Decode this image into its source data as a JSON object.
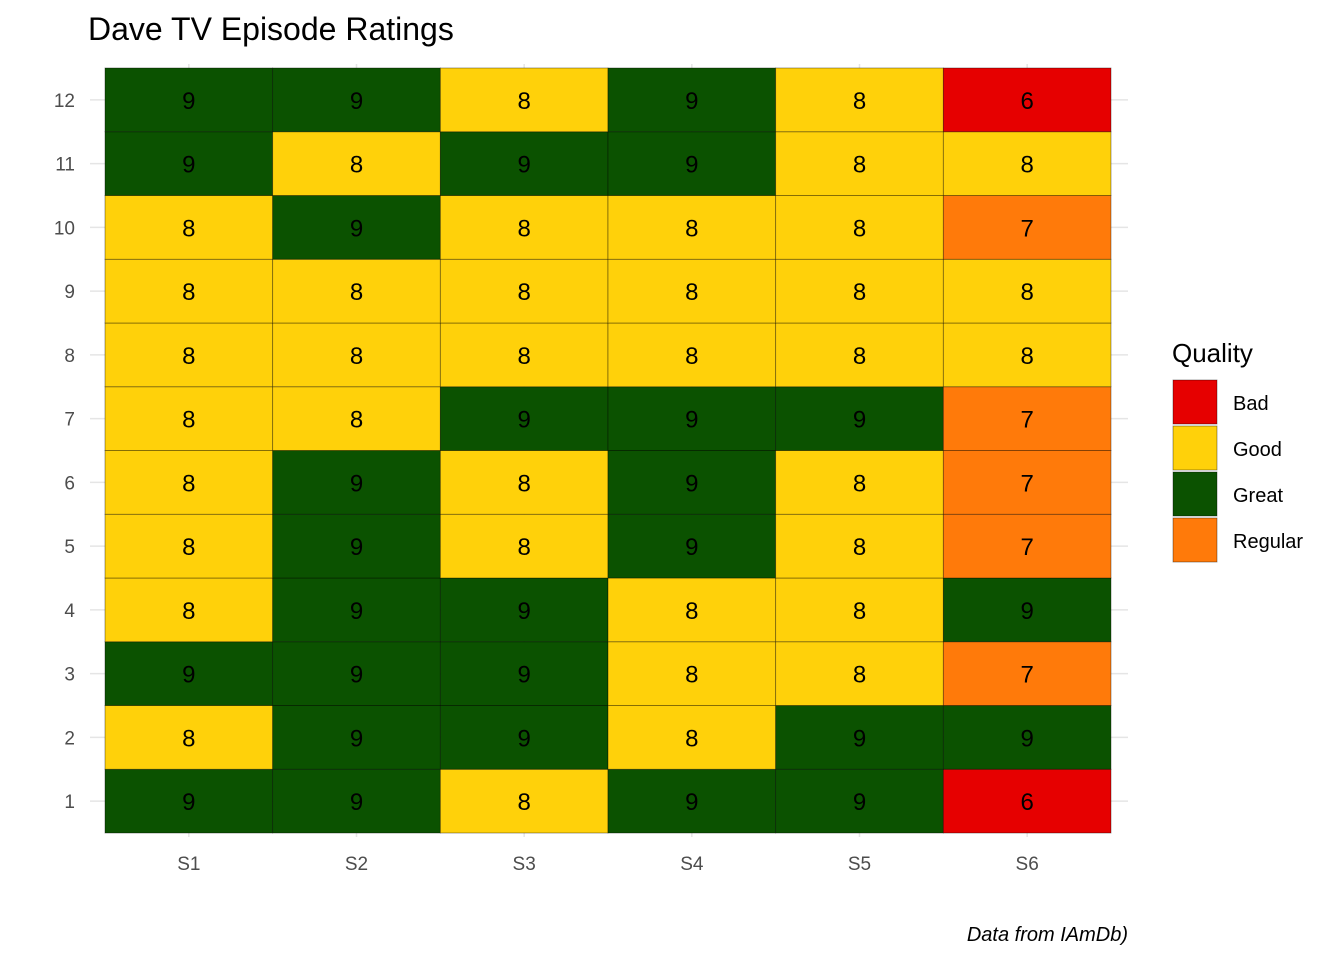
{
  "chart_data": {
    "type": "heatmap",
    "title": "Dave TV Episode Ratings",
    "caption": "Data from IAmDb)",
    "xlabel": "",
    "ylabel": "",
    "x_categories": [
      "S1",
      "S2",
      "S3",
      "S4",
      "S5",
      "S6"
    ],
    "y_categories": [
      "1",
      "2",
      "3",
      "4",
      "5",
      "6",
      "7",
      "8",
      "9",
      "10",
      "11",
      "12"
    ],
    "values": [
      [
        9,
        9,
        8,
        9,
        9,
        6
      ],
      [
        8,
        9,
        9,
        8,
        9,
        9
      ],
      [
        9,
        9,
        9,
        8,
        8,
        7
      ],
      [
        8,
        9,
        9,
        8,
        8,
        9
      ],
      [
        8,
        9,
        8,
        9,
        8,
        7
      ],
      [
        8,
        9,
        8,
        9,
        8,
        7
      ],
      [
        8,
        8,
        9,
        9,
        9,
        7
      ],
      [
        8,
        8,
        8,
        8,
        8,
        8
      ],
      [
        8,
        8,
        8,
        8,
        8,
        8
      ],
      [
        8,
        9,
        8,
        8,
        8,
        7
      ],
      [
        9,
        8,
        9,
        9,
        8,
        8
      ],
      [
        9,
        9,
        8,
        9,
        8,
        6
      ]
    ],
    "legend": {
      "title": "Quality",
      "position": "right",
      "entries": [
        {
          "label": "Bad",
          "color": "#e60000"
        },
        {
          "label": "Good",
          "color": "#ffd10a"
        },
        {
          "label": "Great",
          "color": "#0b5200"
        },
        {
          "label": "Regular",
          "color": "#ff7a0a"
        }
      ]
    },
    "value_quality": {
      "6": "Bad",
      "7": "Regular",
      "8": "Good",
      "9": "Great"
    },
    "grid": true
  }
}
